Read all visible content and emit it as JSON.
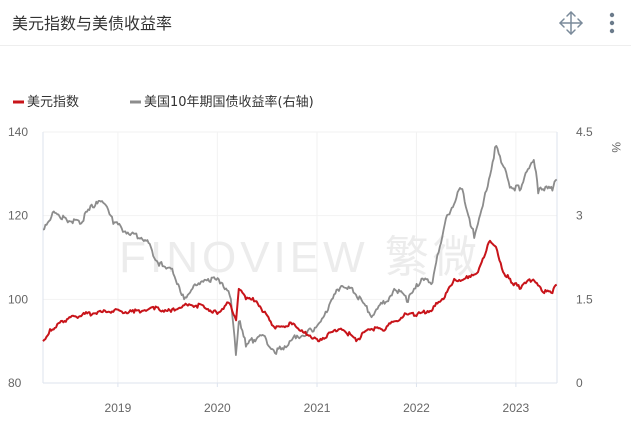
{
  "panel": {
    "title": "美元指数与美债收益率",
    "icons": [
      "move-icon",
      "more-vertical-icon"
    ]
  },
  "watermark": "FINOVIEW 繁微",
  "colors": {
    "dollar_index": "#c8141a",
    "us10y": "#8c8c8c",
    "grid": "#f2f2f2",
    "axis": "#dde3ee"
  },
  "chart_data": {
    "type": "line",
    "legend_position": "top-left",
    "grid": true,
    "xlim": [
      "2018-04-01",
      "2023-06-01"
    ],
    "x_ticks": [
      "2019",
      "2020",
      "2021",
      "2022",
      "2023"
    ],
    "y_left": {
      "range": [
        80,
        140
      ],
      "ticks": [
        80,
        100,
        120,
        140
      ]
    },
    "y_right": {
      "range": [
        0,
        4.5
      ],
      "ticks": [
        "0",
        "1.5",
        "3",
        "4.5"
      ],
      "unit": "%"
    },
    "series": [
      {
        "name": "美元指数",
        "axis": "left",
        "color": "#c8141a",
        "points": [
          [
            "2018-04-01",
            90
          ],
          [
            "2018-05-01",
            92.5
          ],
          [
            "2018-06-15",
            94.5
          ],
          [
            "2018-08-15",
            96
          ],
          [
            "2018-10-15",
            96.5
          ],
          [
            "2018-12-15",
            97
          ],
          [
            "2019-03-01",
            96.8
          ],
          [
            "2019-05-15",
            97.6
          ],
          [
            "2019-07-15",
            97
          ],
          [
            "2019-09-15",
            98.5
          ],
          [
            "2019-11-15",
            98
          ],
          [
            "2020-01-01",
            96.5
          ],
          [
            "2020-02-15",
            99
          ],
          [
            "2020-03-10",
            95
          ],
          [
            "2020-03-20",
            102.5
          ],
          [
            "2020-04-15",
            100
          ],
          [
            "2020-05-15",
            99.5
          ],
          [
            "2020-06-15",
            97
          ],
          [
            "2020-08-01",
            93
          ],
          [
            "2020-10-01",
            94
          ],
          [
            "2020-11-15",
            92
          ],
          [
            "2021-01-05",
            90
          ],
          [
            "2021-03-30",
            93
          ],
          [
            "2021-05-25",
            90
          ],
          [
            "2021-07-15",
            92.7
          ],
          [
            "2021-09-01",
            92.5
          ],
          [
            "2021-11-15",
            96
          ],
          [
            "2022-01-01",
            96
          ],
          [
            "2022-03-01",
            97.5
          ],
          [
            "2022-04-15",
            100.5
          ],
          [
            "2022-05-15",
            104
          ],
          [
            "2022-06-30",
            105
          ],
          [
            "2022-08-15",
            106.5
          ],
          [
            "2022-09-28",
            114
          ],
          [
            "2022-10-20",
            112.5
          ],
          [
            "2022-11-15",
            106.5
          ],
          [
            "2022-12-15",
            104
          ],
          [
            "2023-01-15",
            102.5
          ],
          [
            "2023-03-01",
            104.5
          ],
          [
            "2023-04-15",
            101.5
          ],
          [
            "2023-05-15",
            101.5
          ],
          [
            "2023-05-31",
            103.5
          ]
        ]
      },
      {
        "name": "美国10年期国债收益率(右轴)",
        "axis": "right",
        "color": "#8c8c8c",
        "points": [
          [
            "2018-04-01",
            2.75
          ],
          [
            "2018-05-15",
            3.05
          ],
          [
            "2018-07-01",
            2.88
          ],
          [
            "2018-08-15",
            2.85
          ],
          [
            "2018-10-01",
            3.15
          ],
          [
            "2018-11-08",
            3.23
          ],
          [
            "2018-12-15",
            2.85
          ],
          [
            "2019-02-15",
            2.65
          ],
          [
            "2019-04-15",
            2.55
          ],
          [
            "2019-06-01",
            2.1
          ],
          [
            "2019-07-15",
            2.05
          ],
          [
            "2019-09-01",
            1.5
          ],
          [
            "2019-10-15",
            1.75
          ],
          [
            "2019-11-15",
            1.85
          ],
          [
            "2020-01-15",
            1.8
          ],
          [
            "2020-02-20",
            1.5
          ],
          [
            "2020-03-09",
            0.5
          ],
          [
            "2020-03-20",
            1.1
          ],
          [
            "2020-04-15",
            0.65
          ],
          [
            "2020-06-10",
            0.85
          ],
          [
            "2020-08-04",
            0.52
          ],
          [
            "2020-10-15",
            0.8
          ],
          [
            "2020-12-15",
            0.92
          ],
          [
            "2021-01-15",
            1.1
          ],
          [
            "2021-03-31",
            1.74
          ],
          [
            "2021-05-15",
            1.62
          ],
          [
            "2021-07-20",
            1.18
          ],
          [
            "2021-10-20",
            1.65
          ],
          [
            "2021-12-01",
            1.45
          ],
          [
            "2022-01-15",
            1.8
          ],
          [
            "2022-03-01",
            1.8
          ],
          [
            "2022-04-15",
            2.85
          ],
          [
            "2022-06-14",
            3.48
          ],
          [
            "2022-08-01",
            2.6
          ],
          [
            "2022-09-15",
            3.45
          ],
          [
            "2022-10-21",
            4.25
          ],
          [
            "2022-12-10",
            3.5
          ],
          [
            "2023-01-15",
            3.45
          ],
          [
            "2023-03-08",
            4.0
          ],
          [
            "2023-03-24",
            3.4
          ],
          [
            "2023-04-15",
            3.45
          ],
          [
            "2023-05-15",
            3.45
          ],
          [
            "2023-05-31",
            3.65
          ]
        ]
      }
    ]
  }
}
